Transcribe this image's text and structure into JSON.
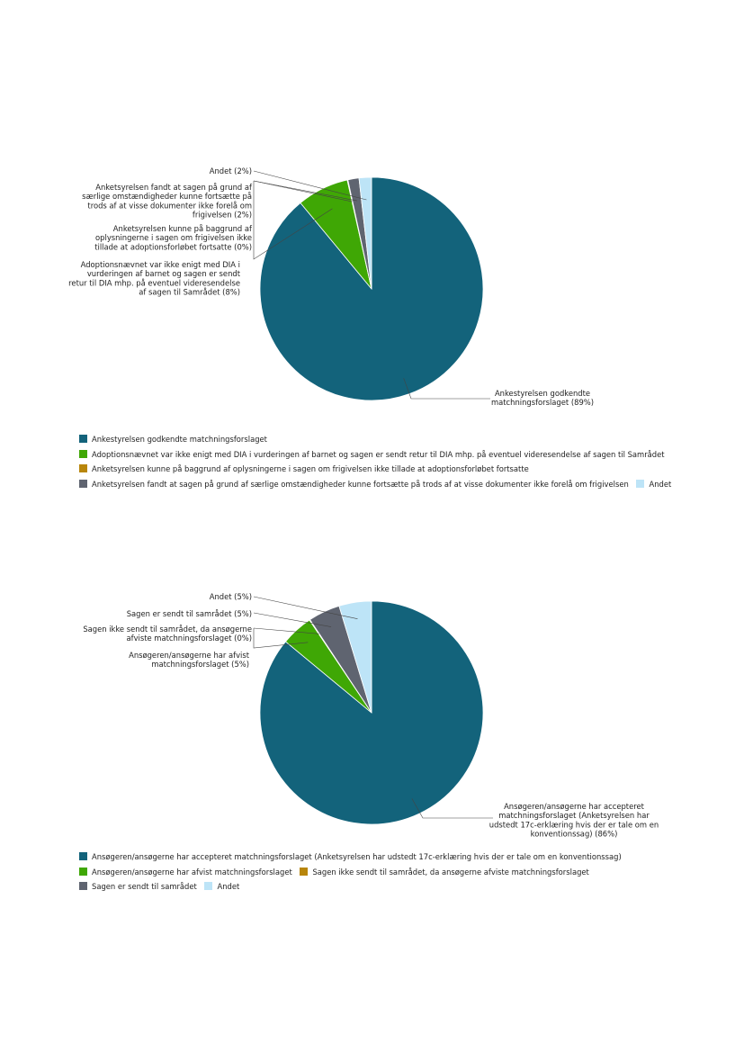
{
  "chart_data": [
    {
      "type": "pie",
      "slices": [
        {
          "label": "Ankestyrelsen godkendte matchningsforslaget",
          "callout": [
            "Ankestyrelsen godkendte",
            "matchningsforslaget (89%)"
          ],
          "value": 89,
          "color": "#13637b"
        },
        {
          "label": "Adoptionsnævnet var ikke enigt med DIA i vurderingen af barnet og sagen er sendt retur til DIA mhp. på eventuel videresendelse af sagen til Samrådet",
          "callout": [
            "Adoptionsnævnet var ikke enigt med DIA i",
            "vurderingen af barnet og sagen er sendt",
            "retur til DIA mhp. på eventuel videresendelse",
            "af sagen til Samrådet (8%)"
          ],
          "value": 7.5,
          "color": "#3fa705"
        },
        {
          "label": "Anketsyrelsen kunne på baggrund af oplysningerne i sagen om frigivelsen ikke tillade at adoptionsforløbet fortsatte",
          "callout": [
            "Anketsyrelsen kunne på baggrund af",
            "oplysningerne i sagen om frigivelsen ikke",
            "tillade at adoptionsforløbet fortsatte (0%)"
          ],
          "value": 0.1,
          "color": "#b8860b"
        },
        {
          "label": "Anketsyrelsen fandt at sagen på grund af særlige omstændigheder kunne fortsætte på trods af at visse dokumenter ikke forelå om frigivelsen",
          "callout": [
            "Anketsyrelsen fandt at sagen på grund af",
            "særlige omstændigheder kunne fortsætte på",
            "trods af at visse dokumenter ikke forelå om",
            "frigivelsen (2%)"
          ],
          "value": 1.6,
          "color": "#5f6470"
        },
        {
          "label": "Andet",
          "callout": [
            "Andet (2%)"
          ],
          "value": 1.8,
          "color": "#bde4f7"
        }
      ]
    },
    {
      "type": "pie",
      "slices": [
        {
          "label": "Ansøgeren/ansøgerne har accepteret matchningsforslaget (Anketsyrelsen har udstedt 17c-erklæring hvis der er tale om en konventionssag)",
          "callout": [
            "Ansøgeren/ansøgerne har accepteret",
            "matchningsforslaget (Anketsyrelsen har",
            "udstedt 17c-erklæring hvis der er tale om en",
            "konventionssag) (86%)"
          ],
          "value": 86,
          "color": "#13637b"
        },
        {
          "label": "Ansøgeren/ansøgerne har afvist matchningsforslaget",
          "callout": [
            "Ansøgeren/ansøgerne har afvist",
            "matchningsforslaget (5%)"
          ],
          "value": 4.6,
          "color": "#3fa705"
        },
        {
          "label": "Sagen ikke sendt til samrådet, da ansøgerne afviste matchningsforslaget",
          "callout": [
            "Sagen ikke sendt til samrådet, da ansøgerne",
            "afviste matchningsforslaget (0%)"
          ],
          "value": 0.1,
          "color": "#b8860b"
        },
        {
          "label": "Sagen er sendt til samrådet",
          "callout": [
            "Sagen er sendt til samrådet (5%)"
          ],
          "value": 4.6,
          "color": "#5f6470"
        },
        {
          "label": "Andet",
          "callout": [
            "Andet (5%)"
          ],
          "value": 4.7,
          "color": "#bde4f7"
        }
      ]
    }
  ]
}
